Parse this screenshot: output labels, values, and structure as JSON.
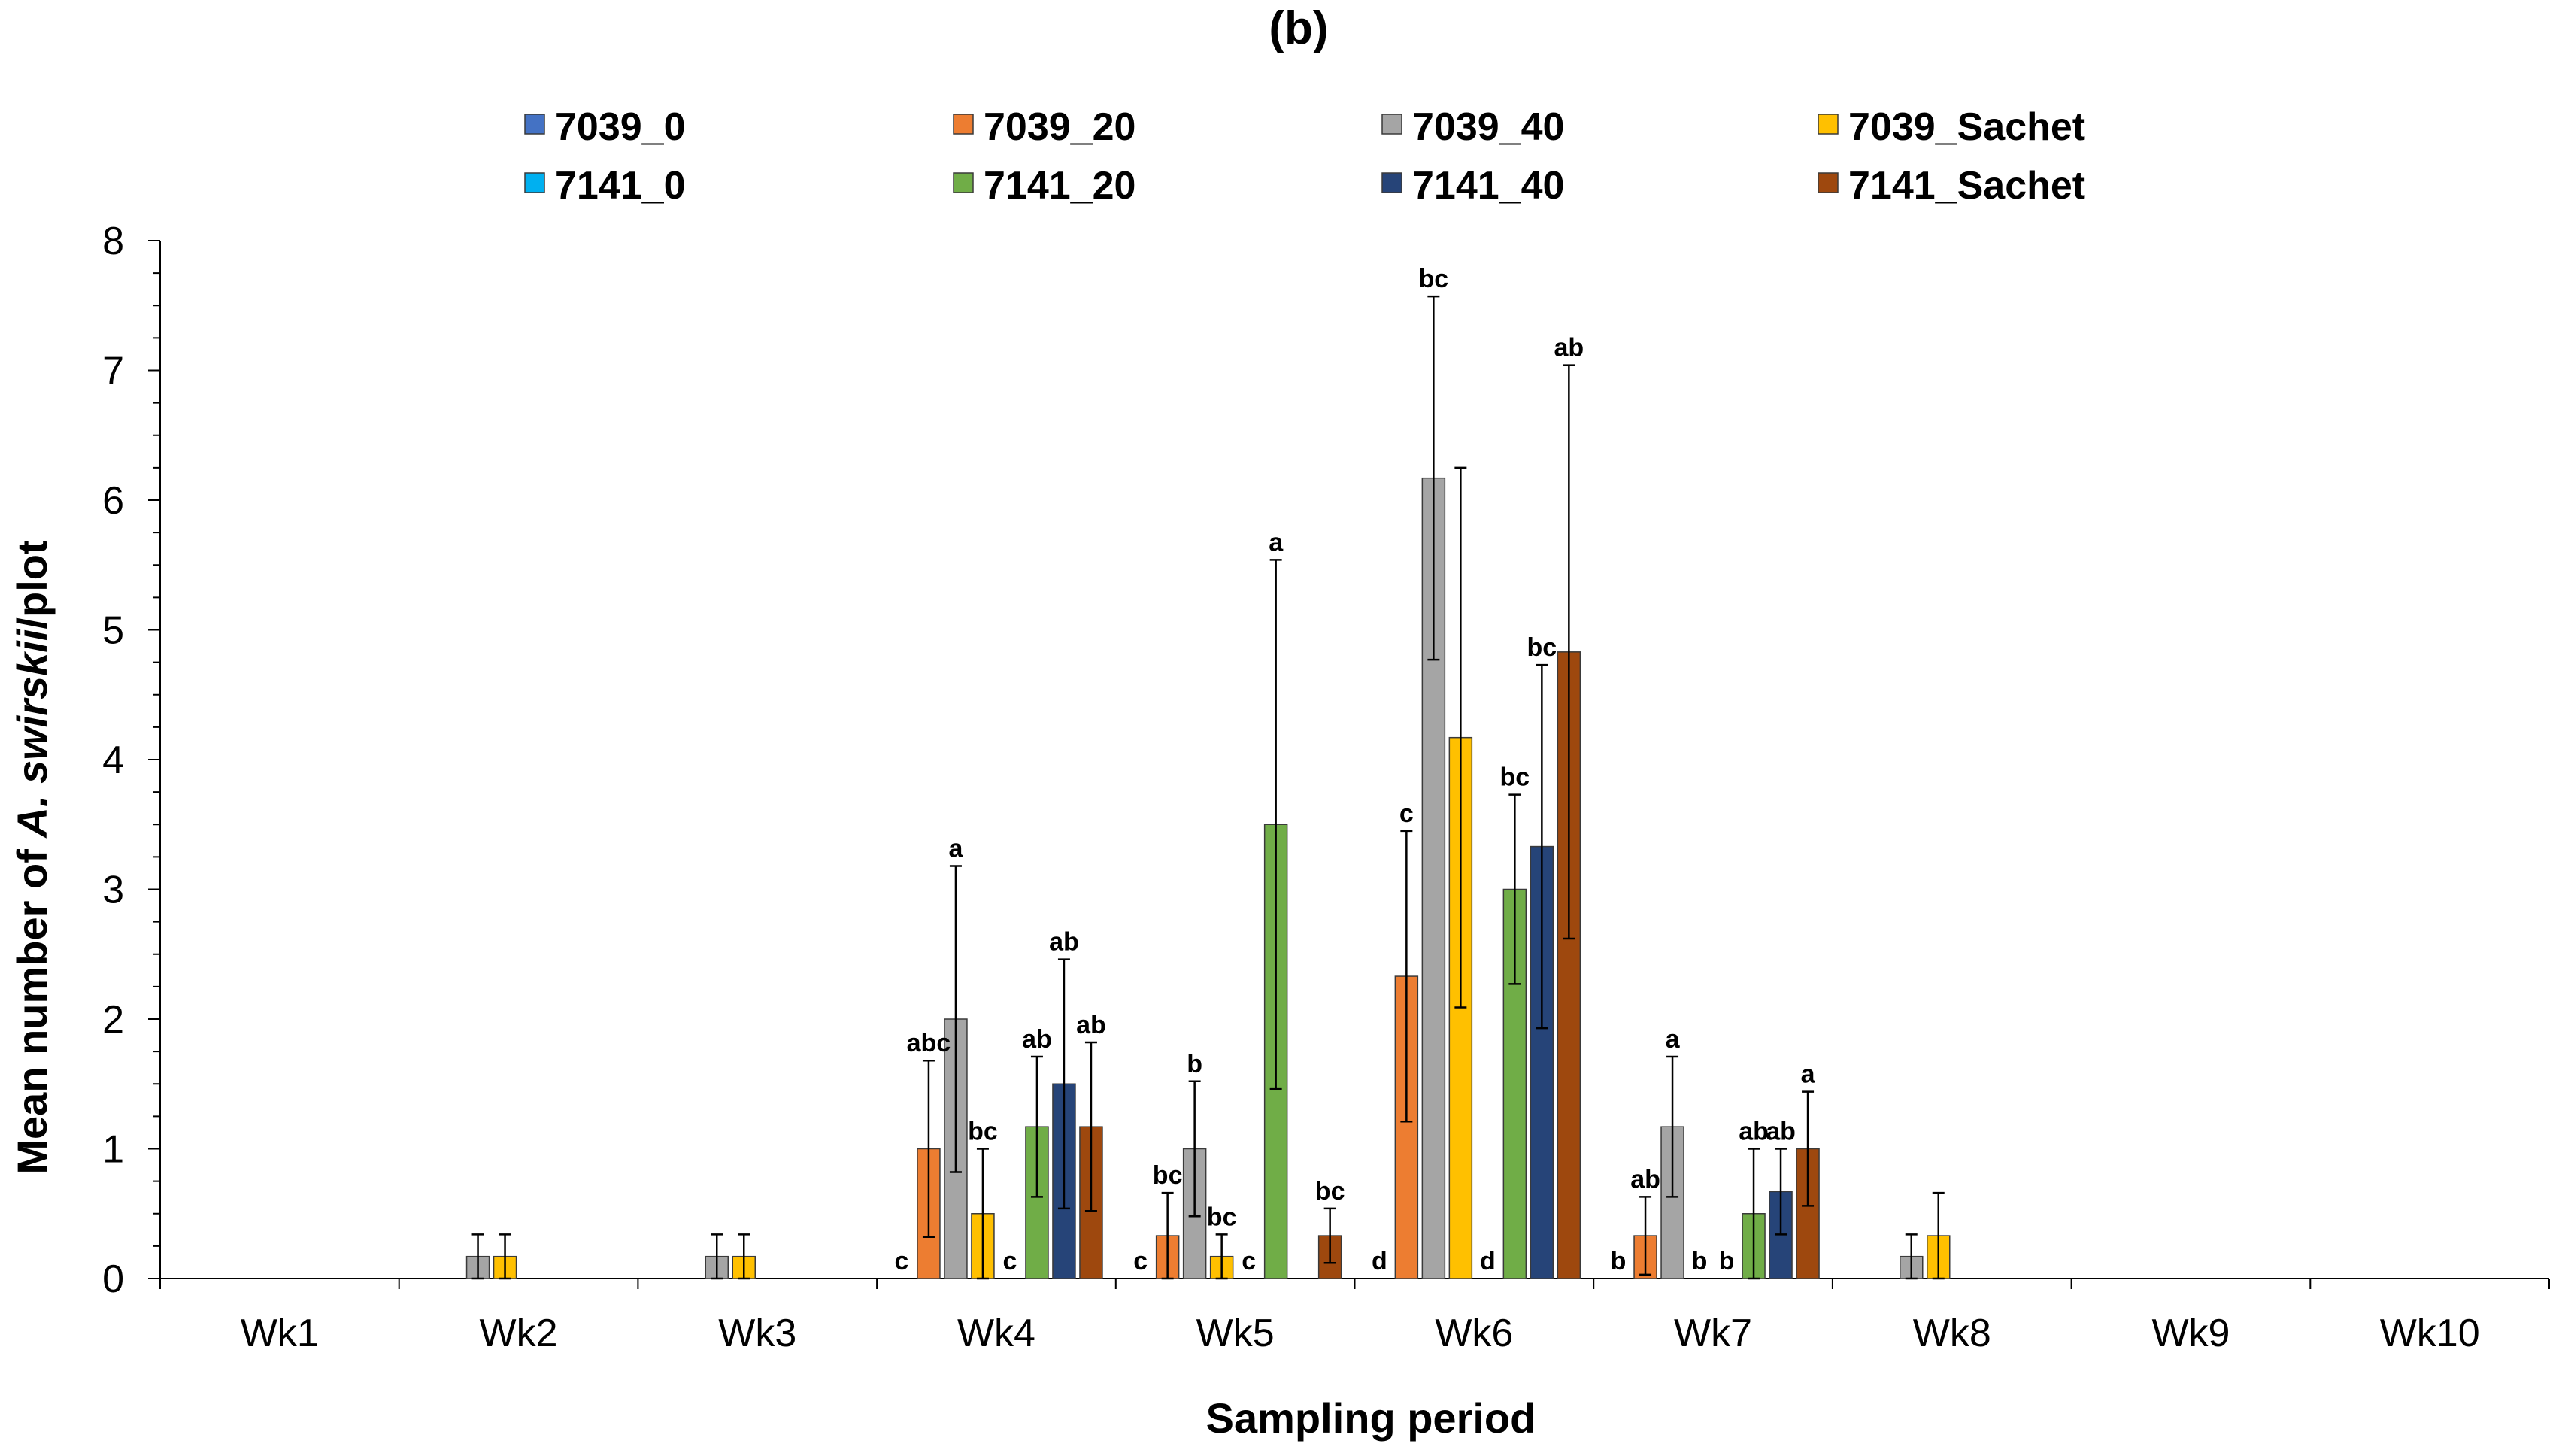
{
  "chart_data": {
    "type": "bar",
    "title": "(b)",
    "xlabel": "Sampling period",
    "ylabel_parts": [
      "Mean number of ",
      "A. swirskii",
      "/plot"
    ],
    "ylim": [
      0,
      8
    ],
    "yticks": [
      0,
      1,
      2,
      3,
      4,
      5,
      6,
      7,
      8
    ],
    "grid": false,
    "legend_position": "top",
    "categories": [
      "Wk1",
      "Wk2",
      "Wk3",
      "Wk4",
      "Wk5",
      "Wk6",
      "Wk7",
      "Wk8",
      "Wk9",
      "Wk10"
    ],
    "series": [
      {
        "name": "7039_0",
        "color": "#4472C4",
        "values": [
          0,
          0,
          0,
          0,
          0,
          0,
          0,
          0,
          0,
          0
        ],
        "errors": [
          0,
          0,
          0,
          0,
          0,
          0,
          0,
          0,
          0,
          0
        ],
        "labels": [
          "",
          "",
          "",
          "c",
          "c",
          "d",
          "b",
          "",
          "",
          ""
        ]
      },
      {
        "name": "7039_20",
        "color": "#ED7D31",
        "values": [
          0,
          0,
          0,
          1.0,
          0.33,
          2.33,
          0.33,
          0,
          0,
          0
        ],
        "errors": [
          0,
          0,
          0,
          0.68,
          0.33,
          1.12,
          0.3,
          0,
          0,
          0
        ],
        "labels": [
          "",
          "",
          "",
          "abc",
          "bc",
          "c",
          "ab",
          "",
          "",
          ""
        ]
      },
      {
        "name": "7039_40",
        "color": "#A5A5A5",
        "values": [
          0,
          0.17,
          0.17,
          2.0,
          1.0,
          6.17,
          1.17,
          0.17,
          0,
          0
        ],
        "errors": [
          0,
          0.17,
          0.17,
          1.18,
          0.52,
          1.4,
          0.54,
          0.17,
          0,
          0
        ],
        "labels": [
          "",
          "",
          "",
          "a",
          "b",
          "bc",
          "a",
          "",
          "",
          ""
        ]
      },
      {
        "name": "7039_Sachet",
        "color": "#FFC000",
        "values": [
          0,
          0.17,
          0.17,
          0.5,
          0.17,
          4.17,
          0,
          0.33,
          0,
          0
        ],
        "errors": [
          0,
          0.17,
          0.17,
          0.5,
          0.17,
          2.08,
          0,
          0.33,
          0,
          0
        ],
        "labels": [
          "",
          "",
          "",
          "bc",
          "bc",
          "",
          "b",
          "",
          "",
          ""
        ]
      },
      {
        "name": "7141_0",
        "color": "#00B0F0",
        "values": [
          0,
          0,
          0,
          0,
          0,
          0,
          0,
          0,
          0,
          0
        ],
        "errors": [
          0,
          0,
          0,
          0,
          0,
          0,
          0,
          0,
          0,
          0
        ],
        "labels": [
          "",
          "",
          "",
          "c",
          "c",
          "d",
          "b",
          "",
          "",
          ""
        ]
      },
      {
        "name": "7141_20",
        "color": "#70AD47",
        "values": [
          0,
          0,
          0,
          1.17,
          3.5,
          3.0,
          0.5,
          0,
          0,
          0
        ],
        "errors": [
          0,
          0,
          0,
          0.54,
          2.04,
          0.73,
          0.5,
          0,
          0,
          0
        ],
        "labels": [
          "",
          "",
          "",
          "ab",
          "a",
          "bc",
          "ab",
          "",
          "",
          ""
        ]
      },
      {
        "name": "7141_40",
        "color": "#264478",
        "values": [
          0,
          0,
          0,
          1.5,
          0,
          3.33,
          0.67,
          0,
          0,
          0
        ],
        "errors": [
          0,
          0,
          0,
          0.96,
          0,
          1.4,
          0.33,
          0,
          0,
          0
        ],
        "labels": [
          "",
          "",
          "",
          "ab",
          "",
          "bc",
          "ab",
          "",
          "",
          ""
        ]
      },
      {
        "name": "7141_Sachet",
        "color": "#9E480E",
        "values": [
          0,
          0,
          0,
          1.17,
          0.33,
          4.83,
          1.0,
          0,
          0,
          0
        ],
        "errors": [
          0,
          0,
          0,
          0.65,
          0.21,
          2.21,
          0.44,
          0,
          0,
          0
        ],
        "labels": [
          "",
          "",
          "",
          "ab",
          "bc",
          "ab",
          "a",
          "",
          "",
          ""
        ]
      }
    ]
  }
}
